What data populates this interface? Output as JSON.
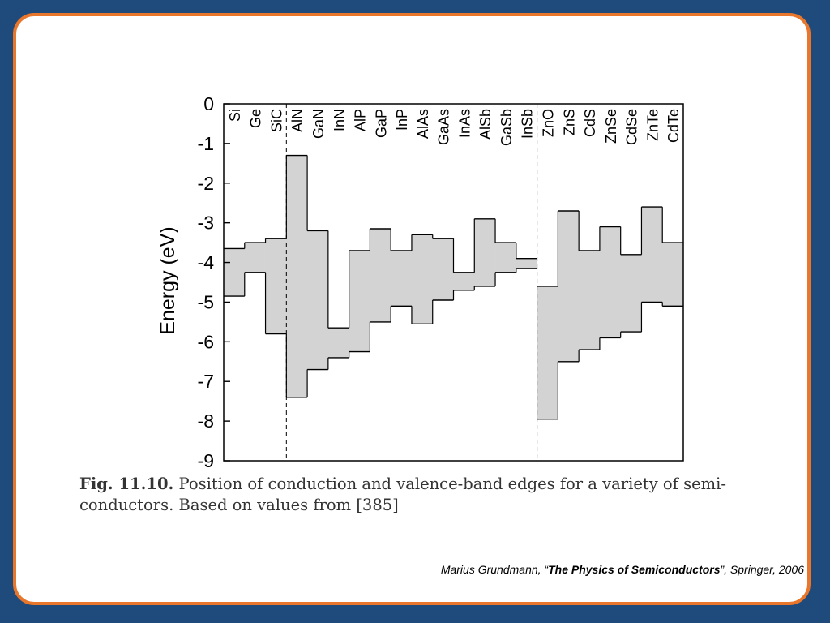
{
  "slide": {
    "caption_label": "Fig. 11.10.",
    "caption_text": "Position of conduction and valence-band edges for a variety of semi-conductors. Based on values from [385]",
    "credit_prefix": "Marius Grundmann, “",
    "credit_title": "The Physics of Semiconductors",
    "credit_suffix": "”, Springer, 2006"
  },
  "chart_data": {
    "type": "bar",
    "ylabel": "Energy (eV)",
    "ylim": [
      -9,
      0
    ],
    "yticks": [
      "0",
      "-1",
      "-2",
      "-3",
      "-4",
      "-5",
      "-6",
      "-7",
      "-8",
      "-9"
    ],
    "group_dividers_after": [
      "SiC",
      "InSb"
    ],
    "categories": [
      "Si",
      "Ge",
      "SiC",
      "AlN",
      "GaN",
      "InN",
      "AlP",
      "GaP",
      "InP",
      "AlAs",
      "GaAs",
      "InAs",
      "AlSb",
      "GaSb",
      "InSb",
      "ZnO",
      "ZnS",
      "CdS",
      "ZnSe",
      "CdSe",
      "ZnTe",
      "CdTe"
    ],
    "series": [
      {
        "values": [
          -3.65,
          -3.5,
          -3.4,
          -1.3,
          -3.2,
          -5.65,
          -3.7,
          -3.15,
          -3.7,
          -3.3,
          -3.4,
          -4.25,
          -2.9,
          -3.5,
          -3.9,
          -4.6,
          -2.7,
          -3.7,
          -3.1,
          -3.8,
          -2.6,
          -3.5
        ]
      },
      {
        "values": [
          -4.85,
          -4.25,
          -5.8,
          -7.4,
          -6.7,
          -6.4,
          -6.25,
          -5.5,
          -5.1,
          -5.55,
          -4.95,
          -4.7,
          -4.6,
          -4.25,
          -4.15,
          -7.95,
          -6.5,
          -6.2,
          -5.9,
          -5.75,
          -5.0,
          -5.1
        ]
      }
    ],
    "fill_color": "#d3d3d3",
    "line_color": "#000000"
  }
}
